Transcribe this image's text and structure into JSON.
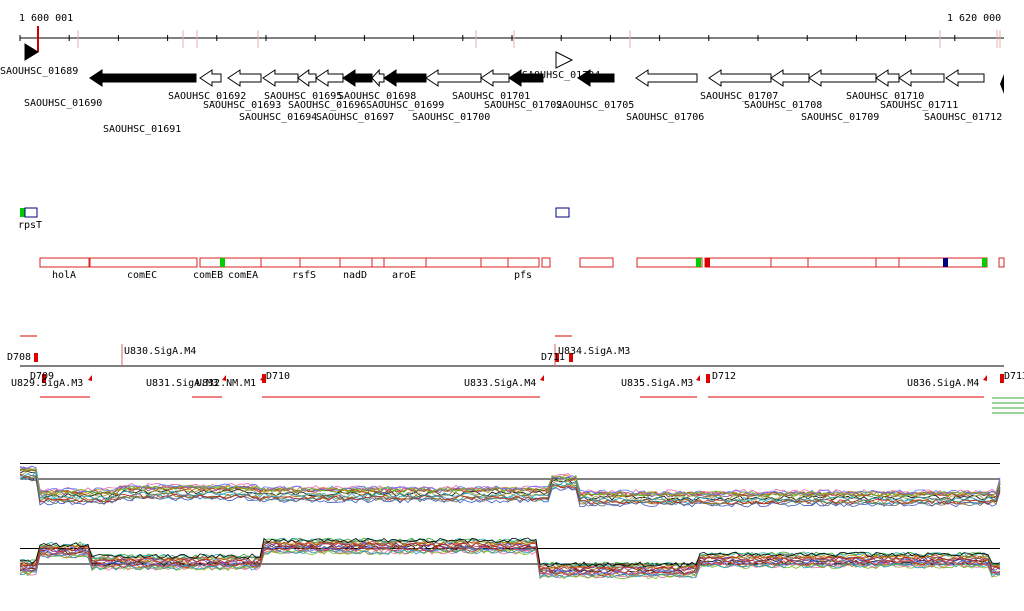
{
  "ruler": {
    "start_label": "1 600 001",
    "end_label": "1 620 000"
  },
  "colors": {
    "feature_border": "#dd2222",
    "tss_mark": "#dd0000",
    "strong_feature": "#00cc00",
    "navy_feature": "#000080",
    "profile_green": "#33aa33"
  },
  "genes": [
    {
      "id": "SAOUHSC_01689",
      "strand": "+",
      "filled": true
    },
    {
      "id": "SAOUHSC_01690",
      "strand": "-",
      "filled": false
    },
    {
      "id": "SAOUHSC_01691",
      "strand": "-",
      "filled": true
    },
    {
      "id": "SAOUHSC_01692",
      "strand": "-",
      "filled": false
    },
    {
      "id": "SAOUHSC_01693",
      "strand": "-",
      "filled": false
    },
    {
      "id": "SAOUHSC_01694",
      "strand": "-",
      "filled": false
    },
    {
      "id": "SAOUHSC_01695",
      "strand": "-",
      "filled": false
    },
    {
      "id": "SAOUHSC_01696",
      "strand": "-",
      "filled": false
    },
    {
      "id": "SAOUHSC_01697",
      "strand": "-",
      "filled": true
    },
    {
      "id": "SAOUHSC_01698",
      "strand": "-",
      "filled": false
    },
    {
      "id": "SAOUHSC_01699",
      "strand": "-",
      "filled": true
    },
    {
      "id": "SAOUHSC_01700",
      "strand": "-",
      "filled": false
    },
    {
      "id": "SAOUHSC_01701",
      "strand": "-",
      "filled": false
    },
    {
      "id": "SAOUHSC_01702",
      "strand": "-",
      "filled": true
    },
    {
      "id": "SAOUHSC_01704",
      "strand": "+",
      "filled": false
    },
    {
      "id": "SAOUHSC_01705",
      "strand": "-",
      "filled": true
    },
    {
      "id": "SAOUHSC_01706",
      "strand": "-",
      "filled": false
    },
    {
      "id": "SAOUHSC_01707",
      "strand": "-",
      "filled": false
    },
    {
      "id": "SAOUHSC_01708",
      "strand": "-",
      "filled": false
    },
    {
      "id": "SAOUHSC_01709",
      "strand": "-",
      "filled": false
    },
    {
      "id": "SAOUHSC_01710",
      "strand": "-",
      "filled": false
    },
    {
      "id": "SAOUHSC_01711",
      "strand": "-",
      "filled": false
    },
    {
      "id": "SAOUHSC_01712",
      "strand": "-",
      "filled": false
    }
  ],
  "upper_features": [
    {
      "name": "rpsT"
    }
  ],
  "operon_labels": [
    "holA",
    "comEC",
    "comEB",
    "comEA",
    "rsfS",
    "nadD",
    "aroE",
    "pfs"
  ],
  "tss_labels": [
    "D708",
    "D709",
    "D710",
    "D711",
    "D712",
    "D713"
  ],
  "promoter_labels": [
    "U829.SigA.M3",
    "U830.SigA.M4",
    "U831.SigA.M3",
    "U832.NM.M1",
    "U833.SigA.M4",
    "U834.SigA.M3",
    "U835.SigA.M3",
    "U836.SigA.M4"
  ]
}
